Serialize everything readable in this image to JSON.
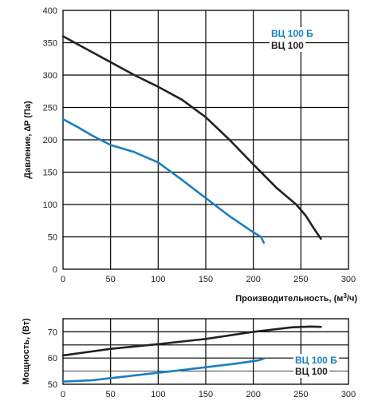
{
  "chart_data": [
    {
      "type": "line",
      "ylabel": "Давление, ∆P (Па)",
      "xlabel_prefix": "Производительность, (м",
      "xlabel_sup": "3",
      "xlabel_suffix": "/ч)",
      "xlim": [
        0,
        300
      ],
      "ylim": [
        0,
        400
      ],
      "x_ticks": [
        "0",
        "50",
        "100",
        "150",
        "200",
        "250",
        "300"
      ],
      "y_ticks": [
        "0",
        "50",
        "100",
        "150",
        "200",
        "250",
        "300",
        "350",
        "400"
      ],
      "grid": true,
      "legend_position": "top-right",
      "series": [
        {
          "name": "ВЦ 100 Б",
          "color": "#1a7fc0",
          "points": [
            [
              0,
              232
            ],
            [
              15,
              220
            ],
            [
              30,
              207
            ],
            [
              50,
              192
            ],
            [
              75,
              181
            ],
            [
              100,
              165
            ],
            [
              125,
              138
            ],
            [
              150,
              110
            ],
            [
              175,
              82
            ],
            [
              200,
              57
            ],
            [
              208,
              50
            ],
            [
              211,
              41
            ]
          ]
        },
        {
          "name": "ВЦ 100",
          "color": "#222222",
          "points": [
            [
              0,
              360
            ],
            [
              25,
              340
            ],
            [
              50,
              320
            ],
            [
              75,
              300
            ],
            [
              100,
              282
            ],
            [
              125,
              262
            ],
            [
              150,
              235
            ],
            [
              175,
              200
            ],
            [
              200,
              162
            ],
            [
              225,
              125
            ],
            [
              245,
              100
            ],
            [
              255,
              83
            ],
            [
              265,
              60
            ],
            [
              271,
              47
            ]
          ]
        }
      ]
    },
    {
      "type": "line",
      "ylabel": "Мощность, (Вт)",
      "xlim": [
        0,
        300
      ],
      "ylim": [
        50,
        75
      ],
      "x_ticks": [
        "0",
        "50",
        "100",
        "150",
        "200",
        "250",
        "300"
      ],
      "y_ticks": [
        "50",
        "60",
        "70"
      ],
      "grid": true,
      "legend_position": "bottom-right",
      "series": [
        {
          "name": "ВЦ 100 Б",
          "color": "#1a7fc0",
          "points": [
            [
              0,
              51
            ],
            [
              30,
              51.5
            ],
            [
              60,
              52.7
            ],
            [
              90,
              54
            ],
            [
              120,
              55.2
            ],
            [
              150,
              56.5
            ],
            [
              180,
              57.8
            ],
            [
              205,
              59.1
            ],
            [
              211,
              59.8
            ]
          ]
        },
        {
          "name": "ВЦ 100",
          "color": "#222222",
          "points": [
            [
              0,
              61
            ],
            [
              50,
              63.5
            ],
            [
              100,
              65.3
            ],
            [
              150,
              67.3
            ],
            [
              200,
              70
            ],
            [
              240,
              71.7
            ],
            [
              260,
              72
            ],
            [
              271,
              71.9
            ]
          ]
        }
      ]
    }
  ]
}
